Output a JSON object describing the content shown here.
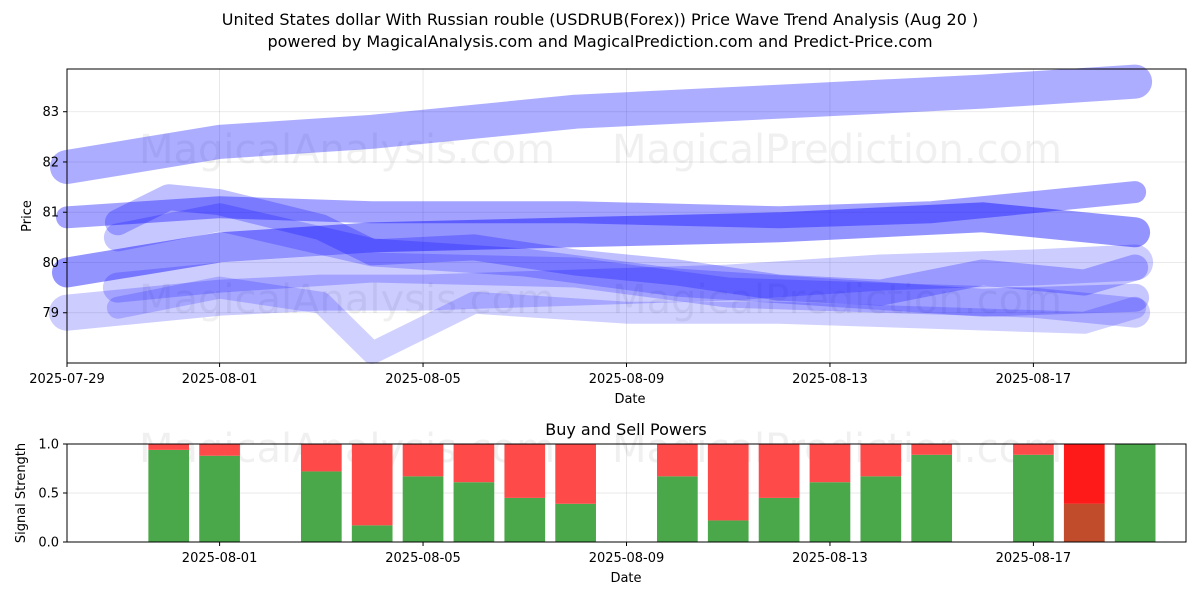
{
  "title_line1": "United States dollar With Russian rouble (USDRUB(Forex)) Price Wave Trend Analysis (Aug 20 )",
  "title_line2": "powered by MagicalAnalysis.com and MagicalPrediction.com and Predict-Price.com",
  "watermarks": [
    "MagicalAnalysis.com",
    "MagicalPrediction.com"
  ],
  "colors": {
    "band": "#0000ff",
    "buy": "#4aa84a",
    "sell": "#ff4a4a",
    "sell_strong": "#ff1a1a"
  },
  "chart_data": [
    {
      "type": "area",
      "title": "",
      "xlabel": "Date",
      "ylabel": "Price",
      "x_tick_labels": [
        "2025-07-29",
        "2025-08-01",
        "2025-08-05",
        "2025-08-09",
        "2025-08-13",
        "2025-08-17"
      ],
      "x_tick_dates": [
        "2025-07-29",
        "2025-08-01",
        "2025-08-05",
        "2025-08-09",
        "2025-08-13",
        "2025-08-17"
      ],
      "xlim": [
        "2025-07-29",
        "2025-08-20"
      ],
      "y_ticks": [
        79,
        80,
        81,
        82,
        83
      ],
      "ylim": [
        78.0,
        83.85
      ],
      "grid": true,
      "series": [
        {
          "x": [
            "2025-07-29",
            "2025-08-01",
            "2025-08-04",
            "2025-08-08",
            "2025-08-12",
            "2025-08-16",
            "2025-08-19"
          ],
          "y": [
            81.9,
            82.4,
            82.6,
            83.0,
            83.2,
            83.4,
            83.6
          ]
        },
        {
          "x": [
            "2025-07-29",
            "2025-08-01",
            "2025-08-04",
            "2025-08-08",
            "2025-08-12",
            "2025-08-15",
            "2025-08-19"
          ],
          "y": [
            80.9,
            81.1,
            81.0,
            81.0,
            80.9,
            81.0,
            81.4
          ]
        },
        {
          "x": [
            "2025-07-29",
            "2025-08-01",
            "2025-08-04",
            "2025-08-08",
            "2025-08-12",
            "2025-08-16",
            "2025-08-19"
          ],
          "y": [
            79.8,
            80.3,
            80.5,
            80.6,
            80.7,
            80.9,
            80.6
          ]
        },
        {
          "x": [
            "2025-07-29",
            "2025-08-01",
            "2025-08-03",
            "2025-08-05",
            "2025-08-08",
            "2025-08-11",
            "2025-08-14",
            "2025-08-17",
            "2025-08-19"
          ],
          "y": [
            79.0,
            79.3,
            79.4,
            79.4,
            79.5,
            79.6,
            79.8,
            79.9,
            80.0
          ]
        },
        {
          "x": [
            "2025-07-30",
            "2025-07-31",
            "2025-08-01",
            "2025-08-03",
            "2025-08-04",
            "2025-08-06",
            "2025-08-08",
            "2025-08-10",
            "2025-08-12",
            "2025-08-14",
            "2025-08-16",
            "2025-08-18",
            "2025-08-19"
          ],
          "y": [
            80.8,
            81.3,
            81.2,
            80.7,
            80.2,
            80.3,
            80.0,
            79.8,
            79.5,
            79.4,
            79.8,
            79.6,
            79.9
          ]
        },
        {
          "x": [
            "2025-07-30",
            "2025-08-01",
            "2025-08-03",
            "2025-08-04",
            "2025-08-06",
            "2025-08-09",
            "2025-08-12",
            "2025-08-15",
            "2025-08-18",
            "2025-08-19"
          ],
          "y": [
            79.1,
            79.5,
            79.2,
            78.2,
            79.2,
            79.0,
            79.0,
            78.9,
            78.8,
            79.1
          ]
        },
        {
          "x": [
            "2025-07-30",
            "2025-08-01",
            "2025-08-04",
            "2025-08-07",
            "2025-08-10",
            "2025-08-13",
            "2025-08-16",
            "2025-08-19"
          ],
          "y": [
            80.5,
            80.9,
            80.2,
            80.0,
            79.6,
            79.4,
            79.2,
            79.3
          ]
        },
        {
          "x": [
            "2025-07-30",
            "2025-08-01",
            "2025-08-04",
            "2025-08-08",
            "2025-08-11",
            "2025-08-14",
            "2025-08-17",
            "2025-08-19"
          ],
          "y": [
            79.5,
            79.7,
            79.9,
            79.8,
            79.4,
            79.3,
            79.2,
            79.0
          ]
        }
      ]
    },
    {
      "type": "bar",
      "title": "Buy and Sell Powers",
      "xlabel": "Date",
      "ylabel": "Signal Strength",
      "x_tick_labels": [
        "2025-08-01",
        "2025-08-05",
        "2025-08-09",
        "2025-08-13",
        "2025-08-17"
      ],
      "x_tick_dates": [
        "2025-08-01",
        "2025-08-05",
        "2025-08-09",
        "2025-08-13",
        "2025-08-17"
      ],
      "xlim": [
        "2025-07-29",
        "2025-08-20"
      ],
      "y_ticks": [
        0.0,
        0.5,
        1.0
      ],
      "y_tick_labels": [
        "0.0",
        "0.5",
        "1.0"
      ],
      "ylim": [
        0,
        1
      ],
      "grid": true,
      "categories": [
        "2025-07-31",
        "2025-08-01",
        "2025-08-03",
        "2025-08-04",
        "2025-08-05",
        "2025-08-06",
        "2025-08-07",
        "2025-08-08",
        "2025-08-10",
        "2025-08-11",
        "2025-08-12",
        "2025-08-13",
        "2025-08-14",
        "2025-08-15",
        "2025-08-17",
        "2025-08-18",
        "2025-08-19"
      ],
      "series": [
        {
          "key": "buy",
          "values": [
            0.94,
            0.88,
            0.72,
            0.17,
            0.67,
            0.61,
            0.45,
            0.39,
            0.67,
            0.22,
            0.45,
            0.61,
            0.67,
            0.89,
            0.89,
            0.39,
            1.0
          ]
        },
        {
          "key": "sell",
          "values": [
            0.06,
            0.12,
            0.28,
            0.83,
            0.33,
            0.39,
            0.55,
            0.61,
            0.33,
            0.78,
            0.55,
            0.39,
            0.33,
            0.11,
            0.11,
            0.61,
            0.0
          ]
        }
      ],
      "strong_sell_categories": [
        "2025-08-18"
      ]
    }
  ]
}
